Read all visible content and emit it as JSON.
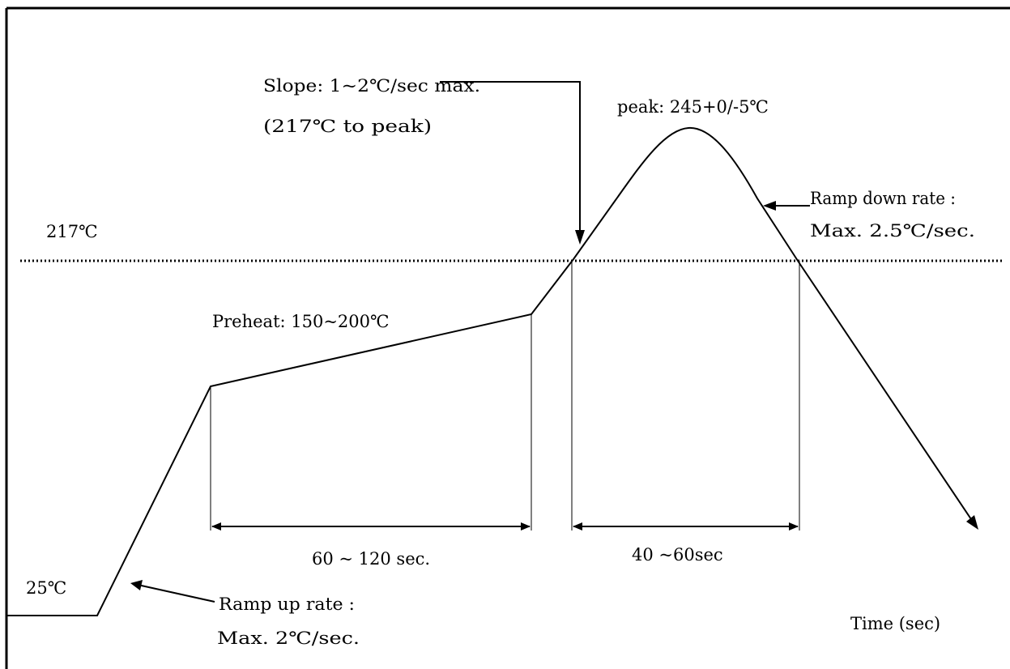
{
  "diagram": {
    "reference_line": {
      "label": "217℃"
    },
    "start_temp": {
      "label": "25℃"
    },
    "preheat": {
      "label": "Preheat: 150~200℃"
    },
    "peak": {
      "label": "peak: 245+0/-5℃"
    },
    "slope_note": {
      "line1": "Slope: 1~2℃/sec max.",
      "line2": "(217℃ to peak)"
    },
    "ramp_down": {
      "line1": "Ramp down rate :",
      "line2": "Max. 2.5℃/sec."
    },
    "ramp_up": {
      "line1": "Ramp up rate :",
      "line2": "Max. 2℃/sec."
    },
    "preheat_duration": {
      "label": "60 ~ 120 sec."
    },
    "reflow_duration": {
      "label": "40 ~60sec"
    },
    "time_axis": {
      "label": "Time (sec)"
    }
  }
}
